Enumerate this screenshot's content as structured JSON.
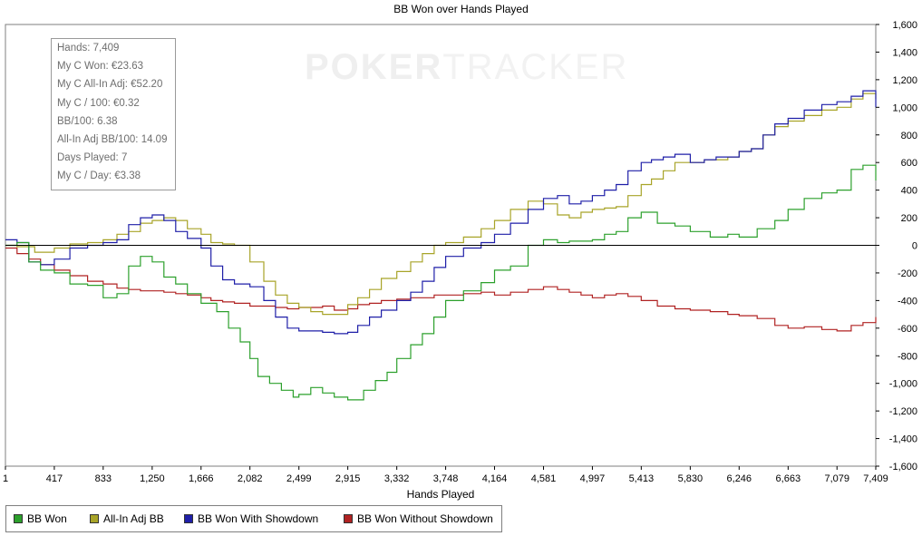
{
  "watermark": {
    "part1": "POKER",
    "part2": "TRACKER"
  },
  "info_box": {
    "rows": [
      "Hands: 7,409",
      "My C Won: €23.63",
      "My C All-In Adj: €52.20",
      "My C / 100: €0.32",
      "BB/100: 6.38",
      "All-In Adj BB/100: 14.09",
      "Days Played: 7",
      "My C / Day: €3.38"
    ]
  },
  "legend": [
    {
      "label": "BB Won",
      "color": "#2ca02c"
    },
    {
      "label": "All-In Adj BB",
      "color": "#a8a428"
    },
    {
      "label": "BB Won With Showdown",
      "color": "#1f1fa8"
    },
    {
      "label": "BB Won Without Showdown",
      "color": "#b02222"
    }
  ],
  "chart_data": {
    "type": "line",
    "title": "BB Won over Hands Played",
    "xlabel": "Hands Played",
    "ylabel": "",
    "xlim": [
      1,
      7409
    ],
    "ylim": [
      -1600,
      1600
    ],
    "x_ticks": [
      1,
      417,
      833,
      1250,
      1666,
      2082,
      2499,
      2915,
      3332,
      3748,
      4164,
      4581,
      4997,
      5413,
      5830,
      6246,
      6663,
      7079,
      7409
    ],
    "x_tick_labels": [
      "1",
      "417",
      "833",
      "1,250",
      "1,666",
      "2,082",
      "2,499",
      "2,915",
      "3,332",
      "3,748",
      "4,164",
      "4,581",
      "4,997",
      "5,413",
      "5,830",
      "6,246",
      "6,663",
      "7,079",
      "7,409"
    ],
    "y_ticks": [
      -1600,
      -1400,
      -1200,
      -1000,
      -800,
      -600,
      -400,
      -200,
      0,
      200,
      400,
      600,
      800,
      1000,
      1200,
      1400,
      1600
    ],
    "y_tick_labels": [
      "-1,600",
      "-1,400",
      "-1,200",
      "-1,000",
      "-800",
      "-600",
      "-400",
      "-200",
      "0",
      "200",
      "400",
      "600",
      "800",
      "1,000",
      "1,200",
      "1,400",
      "1,600"
    ],
    "y_axis_side": "right",
    "zero_line": true,
    "grid": false,
    "legend_position": "bottom-left",
    "series": [
      {
        "name": "BB Won",
        "color": "#2ca02c",
        "points": [
          [
            1,
            0
          ],
          [
            100,
            20
          ],
          [
            200,
            -120
          ],
          [
            300,
            -180
          ],
          [
            417,
            -200
          ],
          [
            550,
            -280
          ],
          [
            700,
            -290
          ],
          [
            833,
            -380
          ],
          [
            950,
            -350
          ],
          [
            1050,
            -150
          ],
          [
            1150,
            -80
          ],
          [
            1250,
            -120
          ],
          [
            1350,
            -230
          ],
          [
            1450,
            -280
          ],
          [
            1550,
            -350
          ],
          [
            1666,
            -420
          ],
          [
            1800,
            -480
          ],
          [
            1900,
            -600
          ],
          [
            2000,
            -700
          ],
          [
            2082,
            -820
          ],
          [
            2150,
            -950
          ],
          [
            2250,
            -1000
          ],
          [
            2350,
            -1050
          ],
          [
            2450,
            -1100
          ],
          [
            2499,
            -1080
          ],
          [
            2600,
            -1030
          ],
          [
            2700,
            -1070
          ],
          [
            2800,
            -1100
          ],
          [
            2915,
            -1120
          ],
          [
            3050,
            -1050
          ],
          [
            3150,
            -980
          ],
          [
            3250,
            -920
          ],
          [
            3332,
            -820
          ],
          [
            3450,
            -720
          ],
          [
            3550,
            -640
          ],
          [
            3648,
            -520
          ],
          [
            3748,
            -400
          ],
          [
            3900,
            -330
          ],
          [
            4050,
            -270
          ],
          [
            4164,
            -180
          ],
          [
            4300,
            -150
          ],
          [
            4450,
            0
          ],
          [
            4581,
            40
          ],
          [
            4700,
            20
          ],
          [
            4800,
            30
          ],
          [
            4997,
            40
          ],
          [
            5100,
            80
          ],
          [
            5200,
            100
          ],
          [
            5300,
            200
          ],
          [
            5413,
            240
          ],
          [
            5550,
            160
          ],
          [
            5700,
            140
          ],
          [
            5830,
            100
          ],
          [
            6000,
            60
          ],
          [
            6150,
            80
          ],
          [
            6246,
            60
          ],
          [
            6400,
            120
          ],
          [
            6550,
            180
          ],
          [
            6663,
            260
          ],
          [
            6800,
            340
          ],
          [
            6950,
            380
          ],
          [
            7079,
            400
          ],
          [
            7200,
            550
          ],
          [
            7300,
            580
          ],
          [
            7409,
            470
          ]
        ]
      },
      {
        "name": "All-In Adj BB",
        "color": "#a8a428",
        "points": [
          [
            1,
            0
          ],
          [
            100,
            -10
          ],
          [
            250,
            -50
          ],
          [
            417,
            -20
          ],
          [
            550,
            10
          ],
          [
            700,
            20
          ],
          [
            833,
            40
          ],
          [
            950,
            80
          ],
          [
            1050,
            100
          ],
          [
            1150,
            160
          ],
          [
            1250,
            180
          ],
          [
            1350,
            200
          ],
          [
            1450,
            180
          ],
          [
            1550,
            120
          ],
          [
            1666,
            80
          ],
          [
            1750,
            20
          ],
          [
            1850,
            10
          ],
          [
            1950,
            0
          ],
          [
            2082,
            -120
          ],
          [
            2200,
            -260
          ],
          [
            2300,
            -360
          ],
          [
            2400,
            -420
          ],
          [
            2499,
            -450
          ],
          [
            2600,
            -480
          ],
          [
            2700,
            -500
          ],
          [
            2800,
            -500
          ],
          [
            2915,
            -430
          ],
          [
            3000,
            -380
          ],
          [
            3100,
            -320
          ],
          [
            3200,
            -240
          ],
          [
            3332,
            -190
          ],
          [
            3450,
            -120
          ],
          [
            3550,
            -60
          ],
          [
            3650,
            0
          ],
          [
            3748,
            20
          ],
          [
            3900,
            60
          ],
          [
            4050,
            120
          ],
          [
            4164,
            180
          ],
          [
            4300,
            260
          ],
          [
            4450,
            320
          ],
          [
            4581,
            300
          ],
          [
            4700,
            220
          ],
          [
            4800,
            200
          ],
          [
            4900,
            240
          ],
          [
            4997,
            260
          ],
          [
            5100,
            270
          ],
          [
            5200,
            280
          ],
          [
            5300,
            360
          ],
          [
            5413,
            440
          ],
          [
            5500,
            480
          ],
          [
            5600,
            540
          ],
          [
            5700,
            600
          ],
          [
            5830,
            600
          ],
          [
            5950,
            620
          ],
          [
            6050,
            620
          ],
          [
            6150,
            640
          ],
          [
            6246,
            680
          ],
          [
            6350,
            700
          ],
          [
            6450,
            800
          ],
          [
            6550,
            860
          ],
          [
            6663,
            900
          ],
          [
            6800,
            940
          ],
          [
            6950,
            980
          ],
          [
            7079,
            1000
          ],
          [
            7200,
            1060
          ],
          [
            7300,
            1100
          ],
          [
            7409,
            1060
          ]
        ]
      },
      {
        "name": "BB Won With Showdown",
        "color": "#1f1fa8",
        "points": [
          [
            1,
            40
          ],
          [
            100,
            20
          ],
          [
            200,
            -120
          ],
          [
            300,
            -140
          ],
          [
            417,
            -100
          ],
          [
            550,
            -20
          ],
          [
            700,
            0
          ],
          [
            833,
            20
          ],
          [
            950,
            40
          ],
          [
            1050,
            150
          ],
          [
            1150,
            200
          ],
          [
            1250,
            220
          ],
          [
            1350,
            180
          ],
          [
            1450,
            100
          ],
          [
            1550,
            50
          ],
          [
            1666,
            -20
          ],
          [
            1750,
            -150
          ],
          [
            1850,
            -250
          ],
          [
            1950,
            -280
          ],
          [
            2082,
            -300
          ],
          [
            2200,
            -400
          ],
          [
            2300,
            -520
          ],
          [
            2400,
            -600
          ],
          [
            2499,
            -620
          ],
          [
            2600,
            -620
          ],
          [
            2700,
            -630
          ],
          [
            2800,
            -640
          ],
          [
            2915,
            -630
          ],
          [
            3000,
            -580
          ],
          [
            3100,
            -520
          ],
          [
            3200,
            -470
          ],
          [
            3332,
            -400
          ],
          [
            3450,
            -340
          ],
          [
            3550,
            -260
          ],
          [
            3650,
            -160
          ],
          [
            3748,
            -80
          ],
          [
            3900,
            -20
          ],
          [
            4050,
            20
          ],
          [
            4164,
            80
          ],
          [
            4300,
            160
          ],
          [
            4450,
            260
          ],
          [
            4581,
            340
          ],
          [
            4700,
            360
          ],
          [
            4800,
            300
          ],
          [
            4900,
            320
          ],
          [
            4997,
            360
          ],
          [
            5100,
            400
          ],
          [
            5200,
            440
          ],
          [
            5300,
            540
          ],
          [
            5413,
            600
          ],
          [
            5500,
            620
          ],
          [
            5600,
            640
          ],
          [
            5700,
            660
          ],
          [
            5830,
            600
          ],
          [
            5950,
            620
          ],
          [
            6050,
            640
          ],
          [
            6150,
            640
          ],
          [
            6246,
            680
          ],
          [
            6350,
            700
          ],
          [
            6450,
            800
          ],
          [
            6550,
            880
          ],
          [
            6663,
            920
          ],
          [
            6800,
            980
          ],
          [
            6950,
            1020
          ],
          [
            7079,
            1040
          ],
          [
            7200,
            1080
          ],
          [
            7300,
            1120
          ],
          [
            7409,
            1000
          ]
        ]
      },
      {
        "name": "BB Won Without Showdown",
        "color": "#b02222",
        "points": [
          [
            1,
            -20
          ],
          [
            100,
            -60
          ],
          [
            200,
            -100
          ],
          [
            300,
            -140
          ],
          [
            417,
            -180
          ],
          [
            550,
            -220
          ],
          [
            700,
            -260
          ],
          [
            833,
            -280
          ],
          [
            950,
            -310
          ],
          [
            1050,
            -320
          ],
          [
            1150,
            -330
          ],
          [
            1250,
            -330
          ],
          [
            1350,
            -340
          ],
          [
            1450,
            -350
          ],
          [
            1550,
            -360
          ],
          [
            1666,
            -380
          ],
          [
            1750,
            -400
          ],
          [
            1850,
            -410
          ],
          [
            1950,
            -420
          ],
          [
            2082,
            -440
          ],
          [
            2200,
            -440
          ],
          [
            2300,
            -450
          ],
          [
            2400,
            -460
          ],
          [
            2499,
            -450
          ],
          [
            2600,
            -450
          ],
          [
            2700,
            -440
          ],
          [
            2800,
            -470
          ],
          [
            2915,
            -460
          ],
          [
            3000,
            -430
          ],
          [
            3100,
            -420
          ],
          [
            3200,
            -400
          ],
          [
            3332,
            -390
          ],
          [
            3450,
            -380
          ],
          [
            3550,
            -380
          ],
          [
            3650,
            -360
          ],
          [
            3748,
            -360
          ],
          [
            3900,
            -350
          ],
          [
            4050,
            -340
          ],
          [
            4164,
            -360
          ],
          [
            4300,
            -340
          ],
          [
            4450,
            -320
          ],
          [
            4581,
            -300
          ],
          [
            4700,
            -320
          ],
          [
            4800,
            -340
          ],
          [
            4900,
            -360
          ],
          [
            4997,
            -380
          ],
          [
            5100,
            -360
          ],
          [
            5200,
            -350
          ],
          [
            5300,
            -370
          ],
          [
            5413,
            -400
          ],
          [
            5550,
            -440
          ],
          [
            5700,
            -460
          ],
          [
            5830,
            -470
          ],
          [
            6000,
            -480
          ],
          [
            6150,
            -500
          ],
          [
            6246,
            -510
          ],
          [
            6400,
            -530
          ],
          [
            6550,
            -580
          ],
          [
            6663,
            -600
          ],
          [
            6800,
            -590
          ],
          [
            6950,
            -610
          ],
          [
            7079,
            -620
          ],
          [
            7200,
            -580
          ],
          [
            7300,
            -560
          ],
          [
            7409,
            -520
          ]
        ]
      }
    ]
  }
}
